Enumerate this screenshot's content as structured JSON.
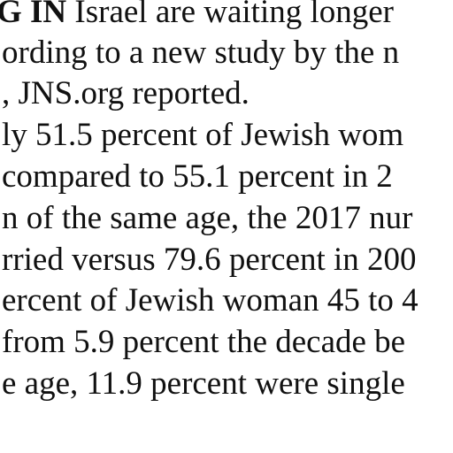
{
  "article": {
    "lines": [
      {
        "lead": "G IN",
        "text": " Israel are waiting longer"
      },
      {
        "text": "ording to a new study by the n"
      },
      {
        "text": ", JNS.org reported."
      },
      {
        "text": "ly 51.5 percent of Jewish wom"
      },
      {
        "text": " compared to 55.1 percent in 2"
      },
      {
        "text": "n of the same age, the 2017 nur"
      },
      {
        "text": "rried versus 79.6 percent in 200"
      },
      {
        "text": "ercent of Jewish woman 45 to 4"
      },
      {
        "text": "from 5.9 percent the decade be"
      },
      {
        "text": "e age, 11.9 percent were single"
      }
    ]
  }
}
